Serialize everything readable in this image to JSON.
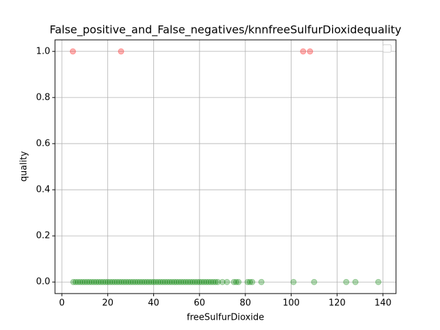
{
  "chart_data": {
    "type": "scatter",
    "title": "False_positive_and_False_negatives/knnfreeSulfurDioxidequality",
    "x_label": "freeSulfurDioxide",
    "y_label": "quality",
    "xlim": [
      -3,
      145.7
    ],
    "ylim": [
      -0.05,
      1.05
    ],
    "xticks": [
      0,
      20,
      40,
      60,
      80,
      100,
      120,
      140
    ],
    "yticks": [
      {
        "value": 0,
        "label": "0.0"
      },
      0.2,
      0.4,
      0.6,
      0.8,
      {
        "value": 1,
        "label": "1.0"
      }
    ],
    "grid": true,
    "alpha": 0.3,
    "series": [
      {
        "color": "#ff0000",
        "x": [
          4.8,
          25.8,
          105.2,
          108.2
        ],
        "y": [
          1,
          1,
          1,
          1
        ]
      },
      {
        "color": "#008000",
        "x": [
          5,
          6,
          7,
          8,
          9,
          10,
          11,
          12,
          13,
          14,
          15,
          16,
          17,
          18,
          19,
          20,
          21,
          22,
          23,
          24,
          25,
          26,
          27,
          28,
          29,
          30,
          31,
          32,
          33,
          34,
          35,
          36,
          37,
          38,
          39,
          40,
          41,
          42,
          43,
          44,
          45,
          46,
          47,
          48,
          49,
          50,
          51,
          52,
          53,
          54,
          55,
          56,
          57,
          58,
          59,
          60,
          61,
          62,
          63,
          64,
          65,
          66,
          67,
          68,
          70,
          72,
          75,
          76,
          77,
          81,
          82,
          83,
          87,
          101,
          110,
          124,
          128,
          138
        ],
        "y": [
          0,
          0,
          0,
          0,
          0,
          0,
          0,
          0,
          0,
          0,
          0,
          0,
          0,
          0,
          0,
          0,
          0,
          0,
          0,
          0,
          0,
          0,
          0,
          0,
          0,
          0,
          0,
          0,
          0,
          0,
          0,
          0,
          0,
          0,
          0,
          0,
          0,
          0,
          0,
          0,
          0,
          0,
          0,
          0,
          0,
          0,
          0,
          0,
          0,
          0,
          0,
          0,
          0,
          0,
          0,
          0,
          0,
          0,
          0,
          0,
          0,
          0,
          0,
          0,
          0,
          0,
          0,
          0,
          0,
          0,
          0,
          0,
          0,
          0,
          0,
          0,
          0,
          0
        ]
      }
    ]
  }
}
